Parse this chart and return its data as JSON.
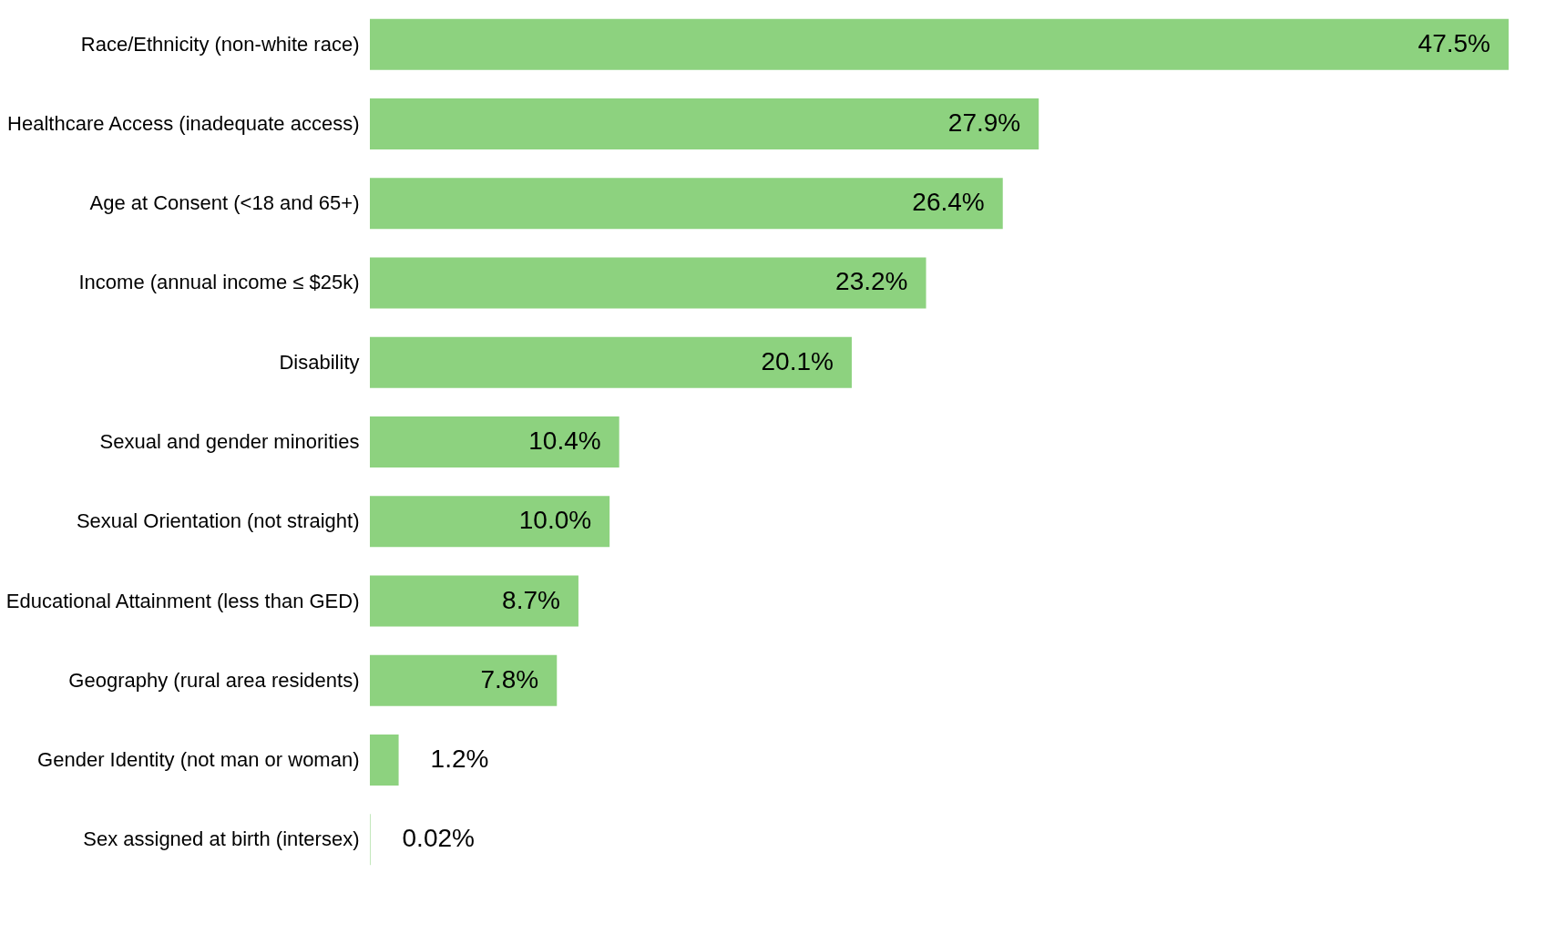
{
  "chart_data": {
    "type": "bar",
    "orientation": "horizontal",
    "categories": [
      "Race/Ethnicity (non-white race)",
      "Healthcare Access (inadequate access)",
      "Age at Consent (<18 and 65+)",
      "Income (annual income ≤ $25k)",
      "Disability",
      "Sexual and gender minorities",
      "Sexual Orientation (not straight)",
      "Educational Attainment (less than GED)",
      "Geography (rural area residents)",
      "Gender Identity (not man or woman)",
      "Sex assigned at birth (intersex)"
    ],
    "values": [
      47.5,
      27.9,
      26.4,
      23.2,
      20.1,
      10.4,
      10.0,
      8.7,
      7.8,
      1.2,
      0.02
    ],
    "value_labels": [
      "47.5%",
      "27.9%",
      "26.4%",
      "23.2%",
      "20.1%",
      "10.4%",
      "10.0%",
      "8.7%",
      "7.8%",
      "1.2%",
      "0.02%"
    ],
    "color": "#8dd27f",
    "grid": false
  }
}
